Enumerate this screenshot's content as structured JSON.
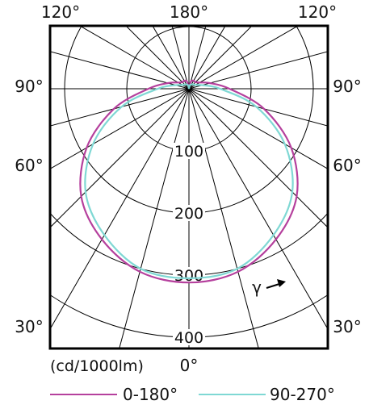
{
  "chart_data": {
    "type": "polar",
    "title": "",
    "unit_label": "(cd/1000lm)",
    "radial_ticks": [
      "100",
      "200",
      "300",
      "400"
    ],
    "radial_values": [
      100,
      200,
      300,
      400
    ],
    "angle_labels": {
      "top_left": "120°",
      "top_center": "180°",
      "top_right": "120°",
      "left_upper": "90°",
      "right_upper": "90°",
      "left_mid": "60°",
      "right_mid": "60°",
      "left_lower": "30°",
      "right_lower": "30°",
      "bottom_center": "0°"
    },
    "spoke_angles_deg": [
      0,
      15,
      30,
      45,
      60,
      75,
      90,
      105,
      120,
      135,
      150,
      165,
      180
    ],
    "gamma_label": "γ",
    "series": [
      {
        "name": "0-180°",
        "color": "#b5409d",
        "angles_deg": [
          0,
          15,
          30,
          45,
          60,
          75,
          90,
          105,
          120,
          135,
          150,
          165,
          180
        ],
        "values": [
          312,
          305,
          280,
          245,
          190,
          125,
          65,
          35,
          20,
          15,
          15,
          12,
          0
        ]
      },
      {
        "name": "90-270°",
        "color": "#7fd8d4",
        "angles_deg": [
          0,
          15,
          30,
          45,
          60,
          75,
          90,
          105,
          120,
          135,
          150,
          165,
          180
        ],
        "values": [
          305,
          300,
          272,
          235,
          178,
          112,
          50,
          22,
          12,
          10,
          8,
          6,
          0
        ]
      }
    ]
  }
}
